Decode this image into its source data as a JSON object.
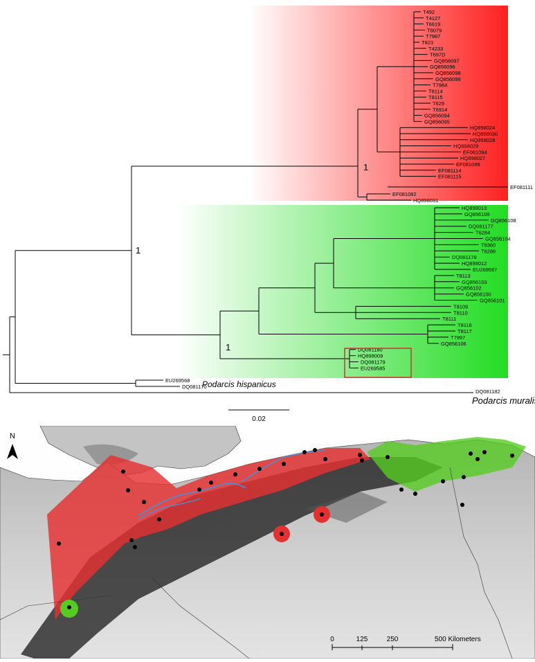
{
  "tree": {
    "clades": {
      "red": {
        "color": "#ff2020",
        "tips": [
          "T492",
          "T4127",
          "T6619",
          "T8079",
          "T7987",
          "T823",
          "T4233",
          "T697D",
          "GQ856097",
          "GQ856096",
          "GQ856098",
          "GQ856099",
          "T7984",
          "T8114",
          "T8115",
          "T629",
          "T6914",
          "GQ856094",
          "GQ856095",
          "HQ898024",
          "HQ898030",
          "HQ898028",
          "HQ898029",
          "EF081094",
          "HQ898027",
          "EF081099",
          "EF081114",
          "EF081115"
        ]
      },
      "green": {
        "color": "#22dd22",
        "tips": [
          "HQ898013",
          "GQ856105",
          "GQ856108",
          "DQ081177",
          "T6284",
          "GQ856104",
          "T6360",
          "T6286",
          "DQ081178",
          "HQ898012",
          "EU269587",
          "T8113",
          "GQ856103",
          "GQ856102",
          "GQ856100",
          "GQ856101",
          "T8109",
          "T8110",
          "T8111",
          "T8116",
          "T8117",
          "T7997",
          "GQ856106",
          "DQ081180",
          "HQ898009",
          "DQ081179",
          "EU269585"
        ]
      }
    },
    "outside_tips": [
      "EF081111",
      "EF081082",
      "HQ898031",
      "EU269568",
      "DQ081170",
      "DQ081182"
    ],
    "support_labels": [
      "1",
      "1",
      "1"
    ],
    "taxon_labels": {
      "hispanicus": "Podarcis hispanicus",
      "muralis": "Podarcis muralis"
    },
    "highlight_box_color": "#cc3333",
    "scale_bar_label": "0.02"
  },
  "map": {
    "north_label": "N",
    "scale": {
      "ticks": [
        "0",
        "125",
        "250",
        "500 Kilometers"
      ]
    },
    "colors": {
      "red_range": "#e53030",
      "green_range": "#55cc22",
      "river": "#4a90d9"
    }
  }
}
